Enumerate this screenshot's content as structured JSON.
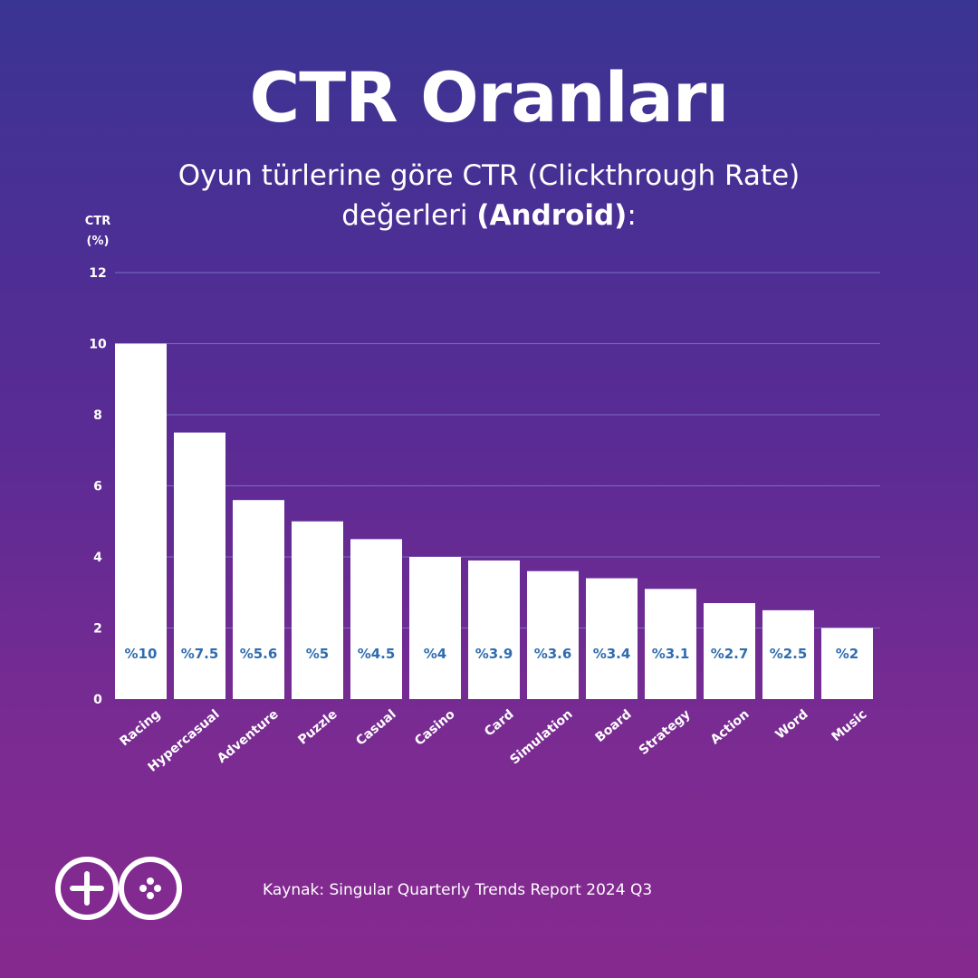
{
  "header": {
    "title": "CTR Oranları",
    "subtitle_line1": "Oyun türlerine göre CTR (Clickthrough Rate)",
    "subtitle_line2_prefix": "değerleri ",
    "subtitle_line2_bold": "(Android)",
    "subtitle_line2_suffix": ":"
  },
  "chart_data": {
    "type": "bar",
    "title": "CTR Oranları",
    "ylabel_line1": "CTR",
    "ylabel_line2": "(%)",
    "xlabel": "",
    "ylim": [
      0,
      12
    ],
    "yticks": [
      0,
      2,
      4,
      6,
      8,
      10,
      12
    ],
    "grid": true,
    "categories": [
      "Racing",
      "Hypercasual",
      "Adventure",
      "Puzzle",
      "Casual",
      "Casino",
      "Card",
      "Simulation",
      "Board",
      "Strategy",
      "Action",
      "Word",
      "Music"
    ],
    "values": [
      10,
      7.5,
      5.6,
      5,
      4.5,
      4,
      3.9,
      3.6,
      3.4,
      3.1,
      2.7,
      2.5,
      2
    ],
    "value_labels": [
      "%10",
      "%7.5",
      "%5.6",
      "%5",
      "%4.5",
      "%4",
      "%3.9",
      "%3.6",
      "%3.4",
      "%3.1",
      "%2.7",
      "%2.5",
      "%2"
    ],
    "colors": {
      "bar": "#ffffff",
      "value_label": "#2f6db0",
      "grid": "#7a6fc0"
    }
  },
  "footer": {
    "logo_icon": "game-controller-logo-icon",
    "source": "Kaynak: Singular Quarterly Trends Report 2024 Q3"
  }
}
